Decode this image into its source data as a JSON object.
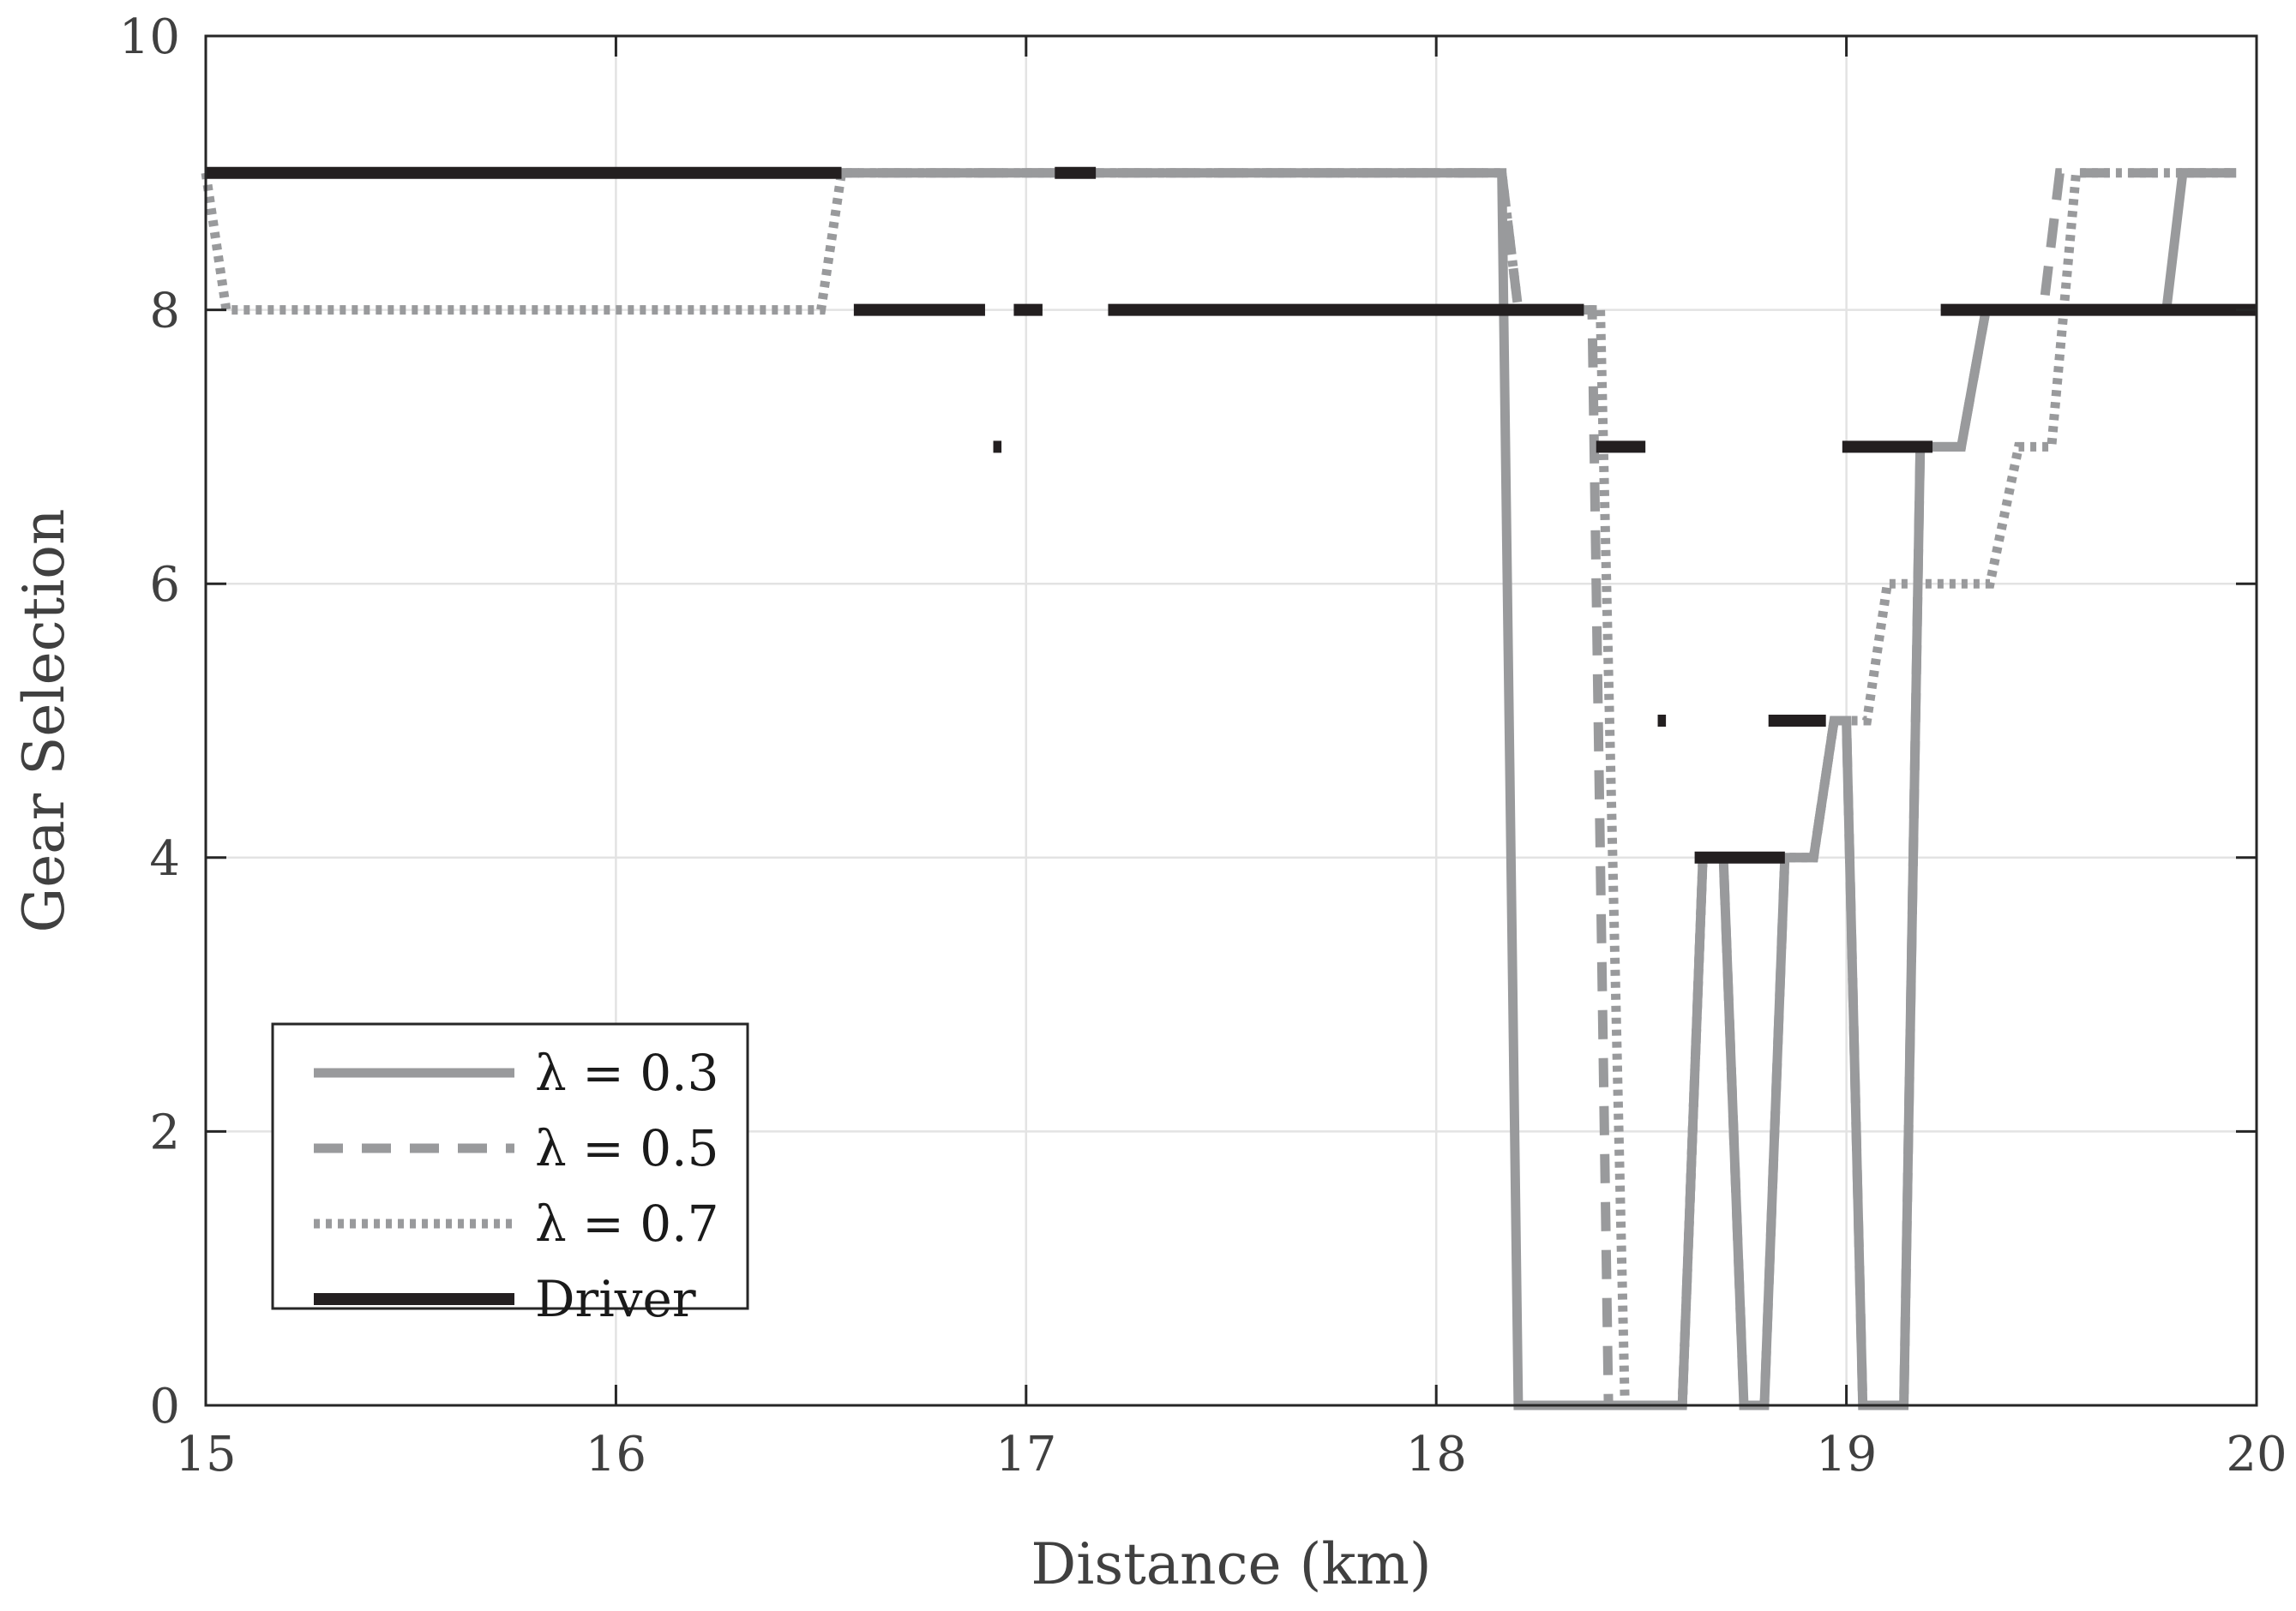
{
  "chart_data": {
    "type": "line",
    "xlabel": "Distance (km)",
    "ylabel": "Gear Selection",
    "xlim": [
      15,
      20
    ],
    "ylim": [
      0,
      10
    ],
    "xticks": [
      15,
      16,
      17,
      18,
      19,
      20
    ],
    "yticks": [
      0,
      2,
      4,
      6,
      8,
      10
    ],
    "grid": true,
    "legend_position": "bottom-left",
    "series": [
      {
        "name": "λ = 0.3",
        "style": "solid",
        "color": "#999a9c",
        "points": [
          [
            15.0,
            9
          ],
          [
            18.16,
            9
          ],
          [
            18.2,
            0
          ],
          [
            18.6,
            0
          ],
          [
            18.65,
            4
          ],
          [
            18.7,
            4
          ],
          [
            18.75,
            0
          ],
          [
            18.8,
            0
          ],
          [
            18.85,
            4
          ],
          [
            18.92,
            4
          ],
          [
            18.97,
            5
          ],
          [
            19.0,
            5
          ],
          [
            19.04,
            0
          ],
          [
            19.14,
            0
          ],
          [
            19.18,
            7
          ],
          [
            19.28,
            7
          ],
          [
            19.34,
            8
          ],
          [
            19.78,
            8
          ],
          [
            19.82,
            9
          ],
          [
            19.95,
            9
          ]
        ]
      },
      {
        "name": "λ = 0.5",
        "style": "dashed",
        "color": "#999a9c",
        "points": [
          [
            15.0,
            9
          ],
          [
            18.16,
            9
          ],
          [
            18.2,
            8
          ],
          [
            18.38,
            8
          ],
          [
            18.42,
            0
          ],
          [
            18.6,
            0
          ],
          [
            18.65,
            4
          ],
          [
            18.7,
            4
          ],
          [
            18.75,
            0
          ],
          [
            18.8,
            0
          ],
          [
            18.85,
            4
          ],
          [
            18.92,
            4
          ],
          [
            18.97,
            5
          ],
          [
            19.0,
            5
          ],
          [
            19.04,
            0
          ],
          [
            19.14,
            0
          ],
          [
            19.18,
            7
          ],
          [
            19.28,
            7
          ],
          [
            19.34,
            8
          ],
          [
            19.48,
            8
          ],
          [
            19.52,
            9
          ],
          [
            19.95,
            9
          ]
        ]
      },
      {
        "name": "λ = 0.7",
        "style": "dotted",
        "color": "#999a9c",
        "points": [
          [
            15.0,
            9
          ],
          [
            15.05,
            8
          ],
          [
            16.5,
            8
          ],
          [
            16.55,
            9
          ],
          [
            18.16,
            9
          ],
          [
            18.2,
            8
          ],
          [
            18.4,
            8
          ],
          [
            18.46,
            0
          ],
          [
            18.6,
            0
          ],
          [
            18.65,
            4
          ],
          [
            18.92,
            4
          ],
          [
            18.97,
            5
          ],
          [
            19.05,
            5
          ],
          [
            19.1,
            6
          ],
          [
            19.35,
            6
          ],
          [
            19.42,
            7
          ],
          [
            19.5,
            7
          ],
          [
            19.56,
            9
          ],
          [
            19.95,
            9
          ]
        ]
      },
      {
        "name": "Driver",
        "style": "solid",
        "color": "#231f20",
        "segments": [
          [
            [
              15.0,
              9
            ],
            [
              16.55,
              9
            ]
          ],
          [
            [
              17.07,
              9
            ],
            [
              17.17,
              9
            ]
          ],
          [
            [
              16.58,
              8
            ],
            [
              16.9,
              8
            ]
          ],
          [
            [
              16.97,
              8
            ],
            [
              17.04,
              8
            ]
          ],
          [
            [
              17.2,
              8
            ],
            [
              18.36,
              8
            ]
          ],
          [
            [
              19.23,
              8
            ],
            [
              20.0,
              8
            ]
          ],
          [
            [
              16.92,
              7
            ],
            [
              16.94,
              7
            ]
          ],
          [
            [
              18.39,
              7
            ],
            [
              18.51,
              7
            ]
          ],
          [
            [
              18.99,
              7
            ],
            [
              19.21,
              7
            ]
          ],
          [
            [
              18.54,
              5
            ],
            [
              18.56,
              5
            ]
          ],
          [
            [
              18.81,
              5
            ],
            [
              18.95,
              5
            ]
          ],
          [
            [
              18.63,
              4
            ],
            [
              18.85,
              4
            ]
          ]
        ]
      }
    ]
  }
}
